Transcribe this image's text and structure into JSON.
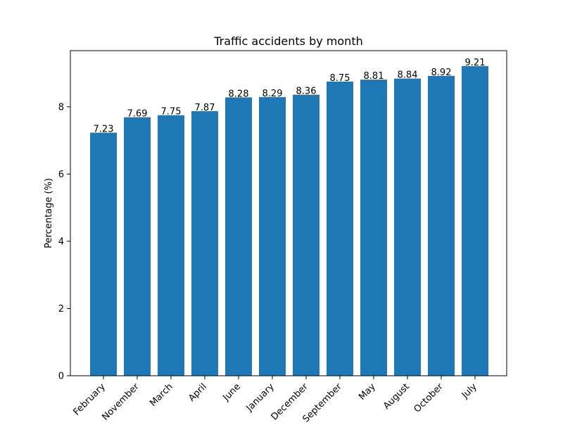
{
  "chart_data": {
    "type": "bar",
    "title": "Traffic accidents by month",
    "xlabel": "",
    "ylabel": "Percentage (%)",
    "categories": [
      "February",
      "November",
      "March",
      "April",
      "June",
      "January",
      "December",
      "September",
      "May",
      "August",
      "October",
      "July"
    ],
    "values": [
      7.23,
      7.69,
      7.75,
      7.87,
      8.28,
      8.29,
      8.36,
      8.75,
      8.81,
      8.84,
      8.92,
      9.21
    ],
    "data_labels": [
      "7.23",
      "7.69",
      "7.75",
      "7.87",
      "8.28",
      "8.29",
      "8.36",
      "8.75",
      "8.81",
      "8.84",
      "8.92",
      "9.21"
    ],
    "yticks": [
      0,
      2,
      4,
      6,
      8
    ],
    "ylim": [
      0,
      9.67
    ],
    "bar_color": "#1f77b4",
    "grid": false,
    "legend": false
  }
}
